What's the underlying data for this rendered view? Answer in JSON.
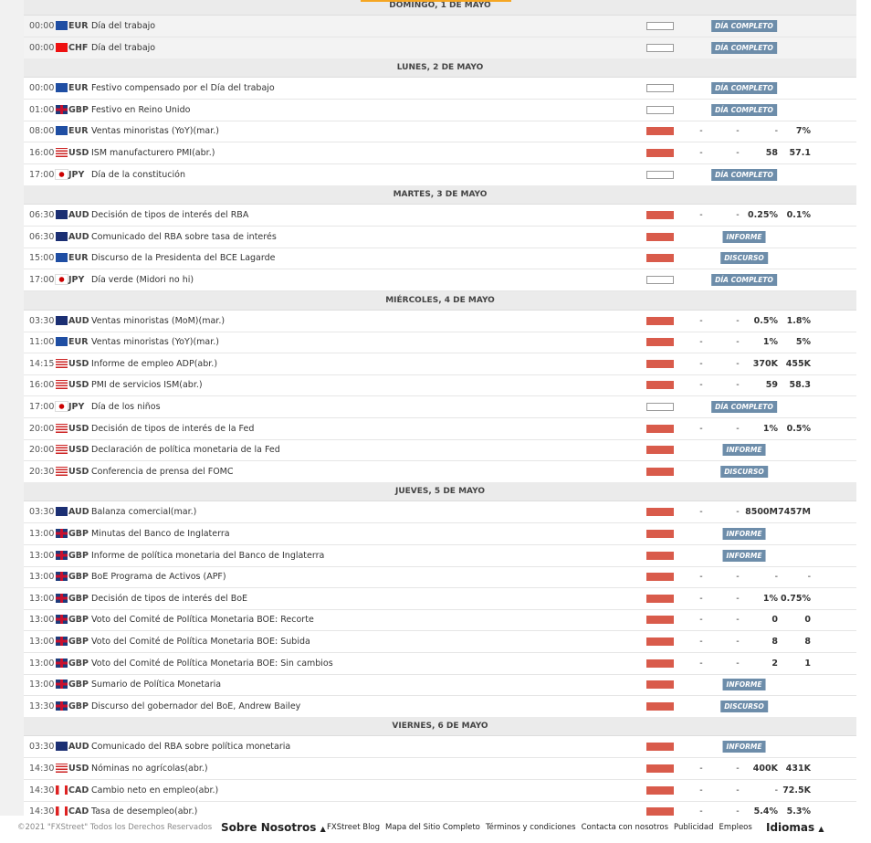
{
  "days": [
    {
      "title": "DOMINGO, 1 DE MAYO",
      "events": [
        {
          "time": "00:00",
          "currency": "EUR",
          "name": "Día del trabajo",
          "impact": "none",
          "badge": "DÍA COMPLETO"
        },
        {
          "time": "00:00",
          "currency": "CHF",
          "name": "Día del trabajo",
          "impact": "none",
          "badge": "DÍA COMPLETO"
        }
      ]
    },
    {
      "title": "LUNES, 2 DE MAYO",
      "events": [
        {
          "time": "00:00",
          "currency": "EUR",
          "name": "Festivo compensado por el Día del trabajo",
          "impact": "none",
          "badge": "DÍA COMPLETO"
        },
        {
          "time": "01:00",
          "currency": "GBP",
          "name": "Festivo en Reino Unido",
          "impact": "none",
          "badge": "DÍA COMPLETO"
        },
        {
          "time": "08:00",
          "currency": "EUR",
          "name": "Ventas minoristas (YoY)(mar.)",
          "impact": "high",
          "values": [
            "-",
            "-",
            "-",
            "7%"
          ]
        },
        {
          "time": "16:00",
          "currency": "USD",
          "name": "ISM manufacturero PMI(abr.)",
          "impact": "high",
          "values": [
            "-",
            "-",
            "58",
            "57.1"
          ]
        },
        {
          "time": "17:00",
          "currency": "JPY",
          "name": "Día de la constitución",
          "impact": "none",
          "badge": "DÍA COMPLETO"
        }
      ]
    },
    {
      "title": "MARTES, 3 DE MAYO",
      "events": [
        {
          "time": "06:30",
          "currency": "AUD",
          "name": "Decisión de tipos de interés del RBA",
          "impact": "high",
          "values": [
            "-",
            "-",
            "0.25%",
            "0.1%"
          ]
        },
        {
          "time": "06:30",
          "currency": "AUD",
          "name": "Comunicado del RBA sobre tasa de interés",
          "impact": "high",
          "badge": "INFORME"
        },
        {
          "time": "15:00",
          "currency": "EUR",
          "name": "Discurso de la Presidenta del BCE Lagarde",
          "impact": "high",
          "badge": "DISCURSO"
        },
        {
          "time": "17:00",
          "currency": "JPY",
          "name": "Día verde (Midori no hi)",
          "impact": "none",
          "badge": "DÍA COMPLETO"
        }
      ]
    },
    {
      "title": "MIÉRCOLES, 4 DE MAYO",
      "events": [
        {
          "time": "03:30",
          "currency": "AUD",
          "name": "Ventas minoristas (MoM)(mar.)",
          "impact": "high",
          "values": [
            "-",
            "-",
            "0.5%",
            "1.8%"
          ]
        },
        {
          "time": "11:00",
          "currency": "EUR",
          "name": "Ventas minoristas (YoY)(mar.)",
          "impact": "high",
          "values": [
            "-",
            "-",
            "1%",
            "5%"
          ]
        },
        {
          "time": "14:15",
          "currency": "USD",
          "name": "Informe de empleo ADP(abr.)",
          "impact": "high",
          "values": [
            "-",
            "-",
            "370K",
            "455K"
          ]
        },
        {
          "time": "16:00",
          "currency": "USD",
          "name": "PMI de servicios ISM(abr.)",
          "impact": "high",
          "values": [
            "-",
            "-",
            "59",
            "58.3"
          ]
        },
        {
          "time": "17:00",
          "currency": "JPY",
          "name": "Día de los niños",
          "impact": "none",
          "badge": "DÍA COMPLETO"
        },
        {
          "time": "20:00",
          "currency": "USD",
          "name": "Decisión de tipos de interés de la Fed",
          "impact": "high",
          "values": [
            "-",
            "-",
            "1%",
            "0.5%"
          ]
        },
        {
          "time": "20:00",
          "currency": "USD",
          "name": "Declaración de política monetaria de la Fed",
          "impact": "high",
          "badge": "INFORME"
        },
        {
          "time": "20:30",
          "currency": "USD",
          "name": "Conferencia de prensa del FOMC",
          "impact": "high",
          "badge": "DISCURSO"
        }
      ]
    },
    {
      "title": "JUEVES, 5 DE MAYO",
      "events": [
        {
          "time": "03:30",
          "currency": "AUD",
          "name": "Balanza comercial(mar.)",
          "impact": "high",
          "values": [
            "-",
            "-",
            "8500M",
            "7457M"
          ]
        },
        {
          "time": "13:00",
          "currency": "GBP",
          "name": "Minutas del Banco de Inglaterra",
          "impact": "high",
          "badge": "INFORME"
        },
        {
          "time": "13:00",
          "currency": "GBP",
          "name": "Informe de política monetaria del Banco de Inglaterra",
          "impact": "high",
          "badge": "INFORME"
        },
        {
          "time": "13:00",
          "currency": "GBP",
          "name": "BoE Programa de Activos (APF)",
          "impact": "high",
          "values": [
            "-",
            "-",
            "-",
            "-"
          ]
        },
        {
          "time": "13:00",
          "currency": "GBP",
          "name": "Decisión de tipos de interés del BoE",
          "impact": "high",
          "values": [
            "-",
            "-",
            "1%",
            "0.75%"
          ]
        },
        {
          "time": "13:00",
          "currency": "GBP",
          "name": "Voto del Comité de Política Monetaria BOE: Recorte",
          "impact": "high",
          "values": [
            "-",
            "-",
            "0",
            "0"
          ]
        },
        {
          "time": "13:00",
          "currency": "GBP",
          "name": "Voto del Comité de Política Monetaria BOE: Subida",
          "impact": "high",
          "values": [
            "-",
            "-",
            "8",
            "8"
          ]
        },
        {
          "time": "13:00",
          "currency": "GBP",
          "name": "Voto del Comité de Política Monetaria BOE: Sin cambios",
          "impact": "high",
          "values": [
            "-",
            "-",
            "2",
            "1"
          ]
        },
        {
          "time": "13:00",
          "currency": "GBP",
          "name": "Sumario de Política Monetaria",
          "impact": "high",
          "badge": "INFORME"
        },
        {
          "time": "13:30",
          "currency": "GBP",
          "name": "Discurso del gobernador del BoE, Andrew Bailey",
          "impact": "high",
          "badge": "DISCURSO"
        }
      ]
    },
    {
      "title": "VIERNES, 6 DE MAYO",
      "events": [
        {
          "time": "03:30",
          "currency": "AUD",
          "name": "Comunicado del RBA sobre política monetaria",
          "impact": "high",
          "badge": "INFORME"
        },
        {
          "time": "14:30",
          "currency": "USD",
          "name": "Nóminas no agrícolas(abr.)",
          "impact": "high",
          "values": [
            "-",
            "-",
            "400K",
            "431K"
          ]
        },
        {
          "time": "14:30",
          "currency": "CAD",
          "name": "Cambio neto en empleo(abr.)",
          "impact": "high",
          "values": [
            "-",
            "-",
            "-",
            "72.5K"
          ]
        },
        {
          "time": "14:30",
          "currency": "CAD",
          "name": "Tasa de desempleo(abr.)",
          "impact": "high",
          "values": [
            "-",
            "-",
            "5.4%",
            "5.3%"
          ]
        }
      ]
    }
  ],
  "footer": {
    "copyright": "©2021 \"FXStreet\" Todos los Derechos Reservados",
    "about": "Sobre Nosotros",
    "links": [
      "FXStreet Blog",
      "Mapa del Sitio Completo",
      "Términos y condiciones",
      "Contacta con nosotros",
      "Publicidad",
      "Empleos"
    ],
    "languages": "Idiomas"
  }
}
